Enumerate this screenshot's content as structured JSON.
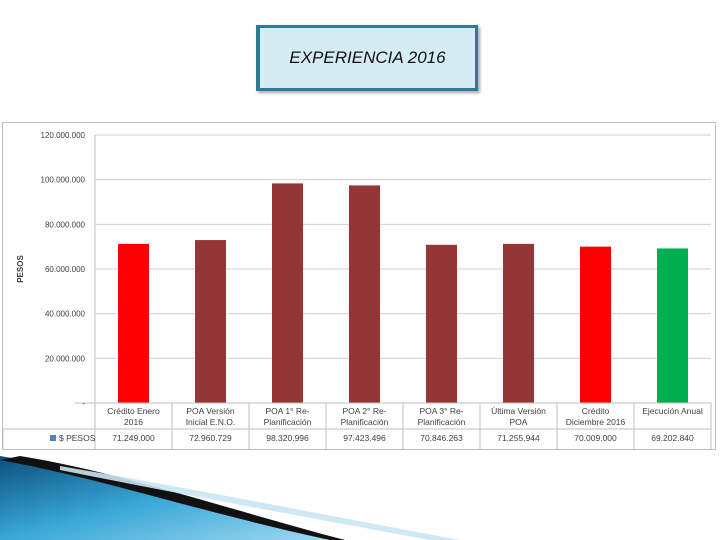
{
  "title": "EXPERIENCIA 2016",
  "chart_data": {
    "type": "bar",
    "ylabel": "PESOS",
    "ylim": [
      0,
      120000000
    ],
    "yticks": [
      "120.000.000",
      "100.000.000",
      "80.000.000",
      "60.000.000",
      "40.000.000",
      "20.000.000",
      "-"
    ],
    "legend": "$ PESOS",
    "categories": [
      [
        "Crédito Enero",
        "2016"
      ],
      [
        "POA Versión",
        "Inicial E.N.O."
      ],
      [
        "POA 1° Re-",
        "Planificación"
      ],
      [
        "POA 2° Re-",
        "Planificación"
      ],
      [
        "POA 3° Re-",
        "Planificación"
      ],
      [
        "Última Versión",
        "POA"
      ],
      [
        "Crédito",
        "Diciembre 2016"
      ],
      [
        "Ejecución Anual",
        ""
      ]
    ],
    "values": [
      71249000,
      72960729,
      98320996,
      97423496,
      70846263,
      71255944,
      70009000,
      69202840
    ],
    "value_labels": [
      "71.249.000",
      "72.960.729",
      "98.320.996",
      "97.423.496",
      "70.846.263",
      "71.255.944",
      "70.009.000",
      "69.202.840"
    ],
    "colors": [
      "#ff0000",
      "#943634",
      "#943634",
      "#943634",
      "#943634",
      "#943634",
      "#ff0000",
      "#00b050"
    ],
    "legend_color": "#4f81bd",
    "grid": true
  }
}
